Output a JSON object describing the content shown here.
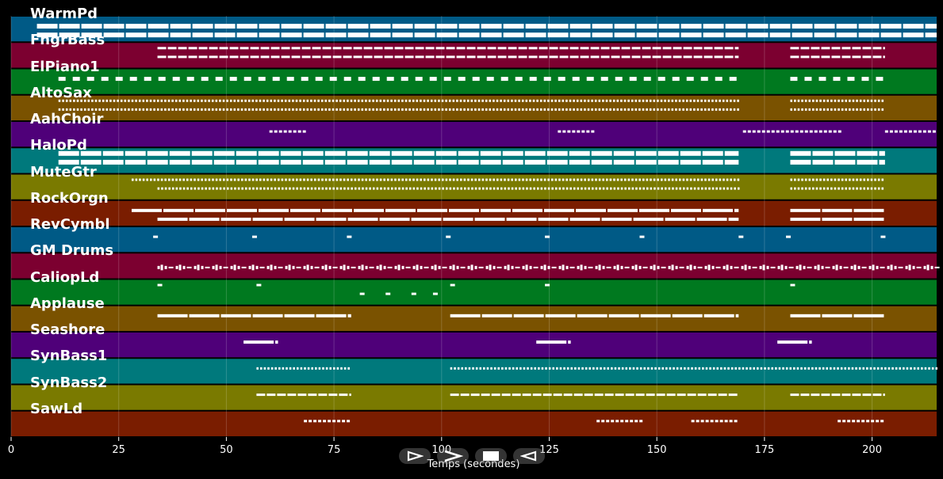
{
  "chart_data": {
    "type": "piano-roll",
    "xlabel": "Temps (secondes)",
    "xlim": [
      0,
      215
    ],
    "xticks": [
      0,
      25,
      50,
      75,
      100,
      125,
      150,
      175,
      200
    ],
    "grid": true,
    "tracks": [
      {
        "name": "WarmPd",
        "color": "#005a86",
        "style": "pad",
        "segments": [
          [
            6,
            215,
            2
          ],
          [
            6,
            215,
            4
          ]
        ]
      },
      {
        "name": "FngrBass",
        "color": "#7c0030",
        "style": "short",
        "segments": [
          [
            34,
            169,
            1
          ],
          [
            34,
            169,
            3
          ],
          [
            181,
            203,
            1
          ],
          [
            181,
            203,
            3
          ]
        ]
      },
      {
        "name": "ElPiano1",
        "color": "#00791f",
        "style": "chords",
        "segments": [
          [
            11,
            167,
            2
          ],
          [
            181,
            203,
            2
          ]
        ]
      },
      {
        "name": "AltoSax",
        "color": "#7a5200",
        "style": "dots",
        "segments": [
          [
            11,
            169,
            1
          ],
          [
            11,
            169,
            3
          ],
          [
            181,
            203,
            1
          ],
          [
            181,
            203,
            3
          ]
        ]
      },
      {
        "name": "AahChoir",
        "color": "#4f0079",
        "style": "sparse",
        "segments": [
          [
            60,
            68,
            2
          ],
          [
            127,
            135,
            2
          ],
          [
            170,
            193,
            2
          ],
          [
            203,
            215,
            2
          ]
        ]
      },
      {
        "name": "HaloPd",
        "color": "#00797c",
        "style": "pad",
        "segments": [
          [
            11,
            169,
            1
          ],
          [
            11,
            169,
            3
          ],
          [
            181,
            203,
            1
          ],
          [
            181,
            203,
            3
          ]
        ]
      },
      {
        "name": "MuteGtr",
        "color": "#7a7a00",
        "style": "dots",
        "segments": [
          [
            28,
            169,
            1
          ],
          [
            34,
            169,
            3
          ],
          [
            181,
            203,
            1
          ],
          [
            181,
            203,
            3
          ]
        ]
      },
      {
        "name": "RockOrgn",
        "color": "#7a1d00",
        "style": "long",
        "segments": [
          [
            28,
            169,
            2
          ],
          [
            34,
            169,
            4
          ],
          [
            181,
            203,
            2
          ],
          [
            181,
            203,
            4
          ]
        ]
      },
      {
        "name": "RevCymbl",
        "color": "#005a86",
        "style": "hits",
        "segments": [
          [
            33,
            34,
            2
          ],
          [
            56,
            57,
            2
          ],
          [
            78,
            79,
            2
          ],
          [
            101,
            102,
            2
          ],
          [
            124,
            125,
            2
          ],
          [
            146,
            147,
            2
          ],
          [
            169,
            170,
            2
          ],
          [
            180,
            181,
            2
          ],
          [
            202,
            203,
            2
          ]
        ]
      },
      {
        "name": "GM Drums",
        "color": "#7c0030",
        "style": "drums",
        "segments": [
          [
            34,
            215,
            3
          ]
        ]
      },
      {
        "name": "CaliopLd",
        "color": "#00791f",
        "style": "hits",
        "segments": [
          [
            34,
            35,
            1
          ],
          [
            57,
            58,
            1
          ],
          [
            81,
            82,
            3
          ],
          [
            87,
            88,
            3
          ],
          [
            93,
            94,
            3
          ],
          [
            98,
            99,
            3
          ],
          [
            102,
            103,
            1
          ],
          [
            124,
            125,
            1
          ],
          [
            181,
            182,
            1
          ]
        ]
      },
      {
        "name": "Applause",
        "color": "#7a5200",
        "style": "long",
        "segments": [
          [
            34,
            79,
            2
          ],
          [
            102,
            169,
            2
          ],
          [
            181,
            203,
            2
          ]
        ]
      },
      {
        "name": "Seashore",
        "color": "#4f0079",
        "style": "long",
        "segments": [
          [
            54,
            62,
            2
          ],
          [
            122,
            130,
            2
          ],
          [
            178,
            186,
            2
          ]
        ]
      },
      {
        "name": "SynBass1",
        "color": "#00797c",
        "style": "dots",
        "segments": [
          [
            57,
            79,
            2
          ],
          [
            102,
            215,
            2
          ]
        ]
      },
      {
        "name": "SynBass2",
        "color": "#7a7a00",
        "style": "short",
        "segments": [
          [
            57,
            79,
            2
          ],
          [
            102,
            169,
            2
          ],
          [
            181,
            203,
            2
          ]
        ]
      },
      {
        "name": "SawLd",
        "color": "#7a1d00",
        "style": "sparse",
        "segments": [
          [
            68,
            79,
            2
          ],
          [
            136,
            147,
            2
          ],
          [
            158,
            169,
            2
          ],
          [
            192,
            203,
            2
          ]
        ]
      }
    ]
  },
  "controls": [
    {
      "name": "play-outline-icon"
    },
    {
      "name": "forward-chevron-icon"
    },
    {
      "name": "stop-icon"
    },
    {
      "name": "back-triangle-icon"
    }
  ]
}
